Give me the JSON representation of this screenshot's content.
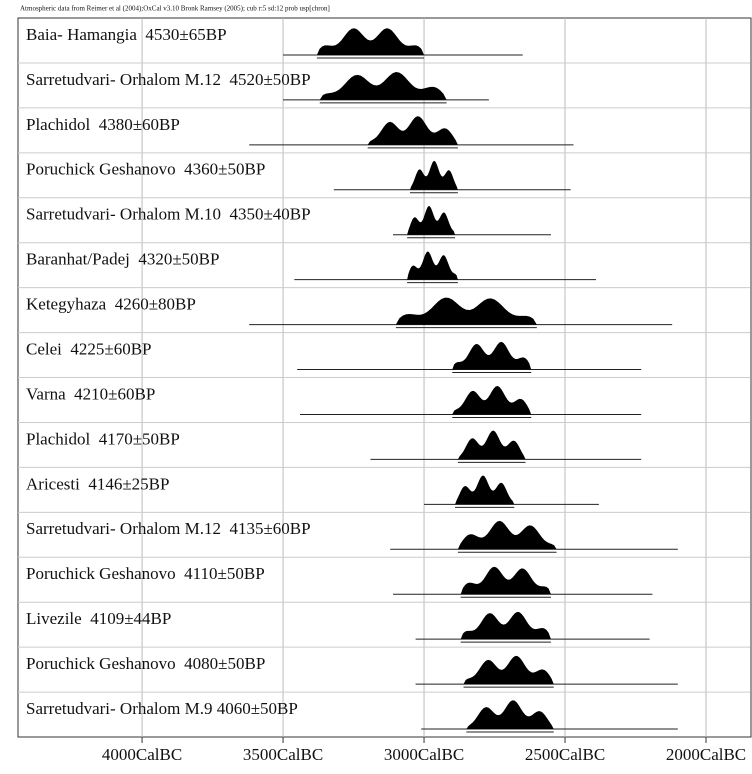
{
  "chart_data": {
    "type": "range",
    "note": "Atmospheric data from Reimer et al (2004);OxCal v3.10 Bronk Ramsey (2005); cub r:5 sd:12 prob usp[chron]",
    "xlim": [
      4440,
      1844
    ],
    "xticks": [
      {
        "value": 4000,
        "label": "4000CalBC"
      },
      {
        "value": 3500,
        "label": "3500CalBC"
      },
      {
        "value": 3000,
        "label": "3000CalBC"
      },
      {
        "value": 2500,
        "label": "2500CalBC"
      },
      {
        "value": 2000,
        "label": "2000CalBC"
      }
    ],
    "grid": true,
    "color": "#000000",
    "rows": [
      {
        "label": "Baia- Hamangia  4530±65BP",
        "range": [
          3500,
          2650
        ],
        "mass": [
          3380,
          3000
        ]
      },
      {
        "label": "Sarretudvari- Orhalom M.12  4520±50BP",
        "range": [
          3500,
          2770
        ],
        "mass": [
          3370,
          2920
        ]
      },
      {
        "label": "Plachidol  4380±60BP",
        "range": [
          3620,
          2470
        ],
        "mass": [
          3200,
          2880
        ]
      },
      {
        "label": "Poruchick Geshanovo  4360±50BP",
        "range": [
          3320,
          2480
        ],
        "mass": [
          3050,
          2880
        ]
      },
      {
        "label": "Sarretudvari- Orhalom M.10  4350±40BP",
        "range": [
          3110,
          2550
        ],
        "mass": [
          3060,
          2890
        ]
      },
      {
        "label": "Baranhat/Padej  4320±50BP",
        "range": [
          3460,
          2390
        ],
        "mass": [
          3060,
          2880
        ]
      },
      {
        "label": "Ketegyhaza  4260±80BP",
        "range": [
          3620,
          2120
        ],
        "mass": [
          3100,
          2600
        ]
      },
      {
        "label": "Celei  4225±60BP",
        "range": [
          3450,
          2230
        ],
        "mass": [
          2900,
          2620
        ]
      },
      {
        "label": "Varna  4210±60BP",
        "range": [
          3440,
          2230
        ],
        "mass": [
          2900,
          2620
        ]
      },
      {
        "label": "Plachidol  4170±50BP",
        "range": [
          3190,
          2230
        ],
        "mass": [
          2880,
          2640
        ]
      },
      {
        "label": "Aricesti  4146±25BP",
        "range": [
          3000,
          2380
        ],
        "mass": [
          2890,
          2680
        ]
      },
      {
        "label": "Sarretudvari- Orhalom M.12  4135±60BP",
        "range": [
          3120,
          2100
        ],
        "mass": [
          2880,
          2530
        ]
      },
      {
        "label": "Poruchick Geshanovo  4110±50BP",
        "range": [
          3110,
          2190
        ],
        "mass": [
          2870,
          2550
        ]
      },
      {
        "label": "Livezile  4109±44BP",
        "range": [
          3030,
          2200
        ],
        "mass": [
          2870,
          2550
        ]
      },
      {
        "label": "Poruchick Geshanovo  4080±50BP",
        "range": [
          3030,
          2100
        ],
        "mass": [
          2860,
          2540
        ]
      },
      {
        "label": "Sarretudvari- Orhalom M.9 4060±50BP",
        "range": [
          3010,
          2100
        ],
        "mass": [
          2850,
          2540
        ]
      }
    ]
  }
}
